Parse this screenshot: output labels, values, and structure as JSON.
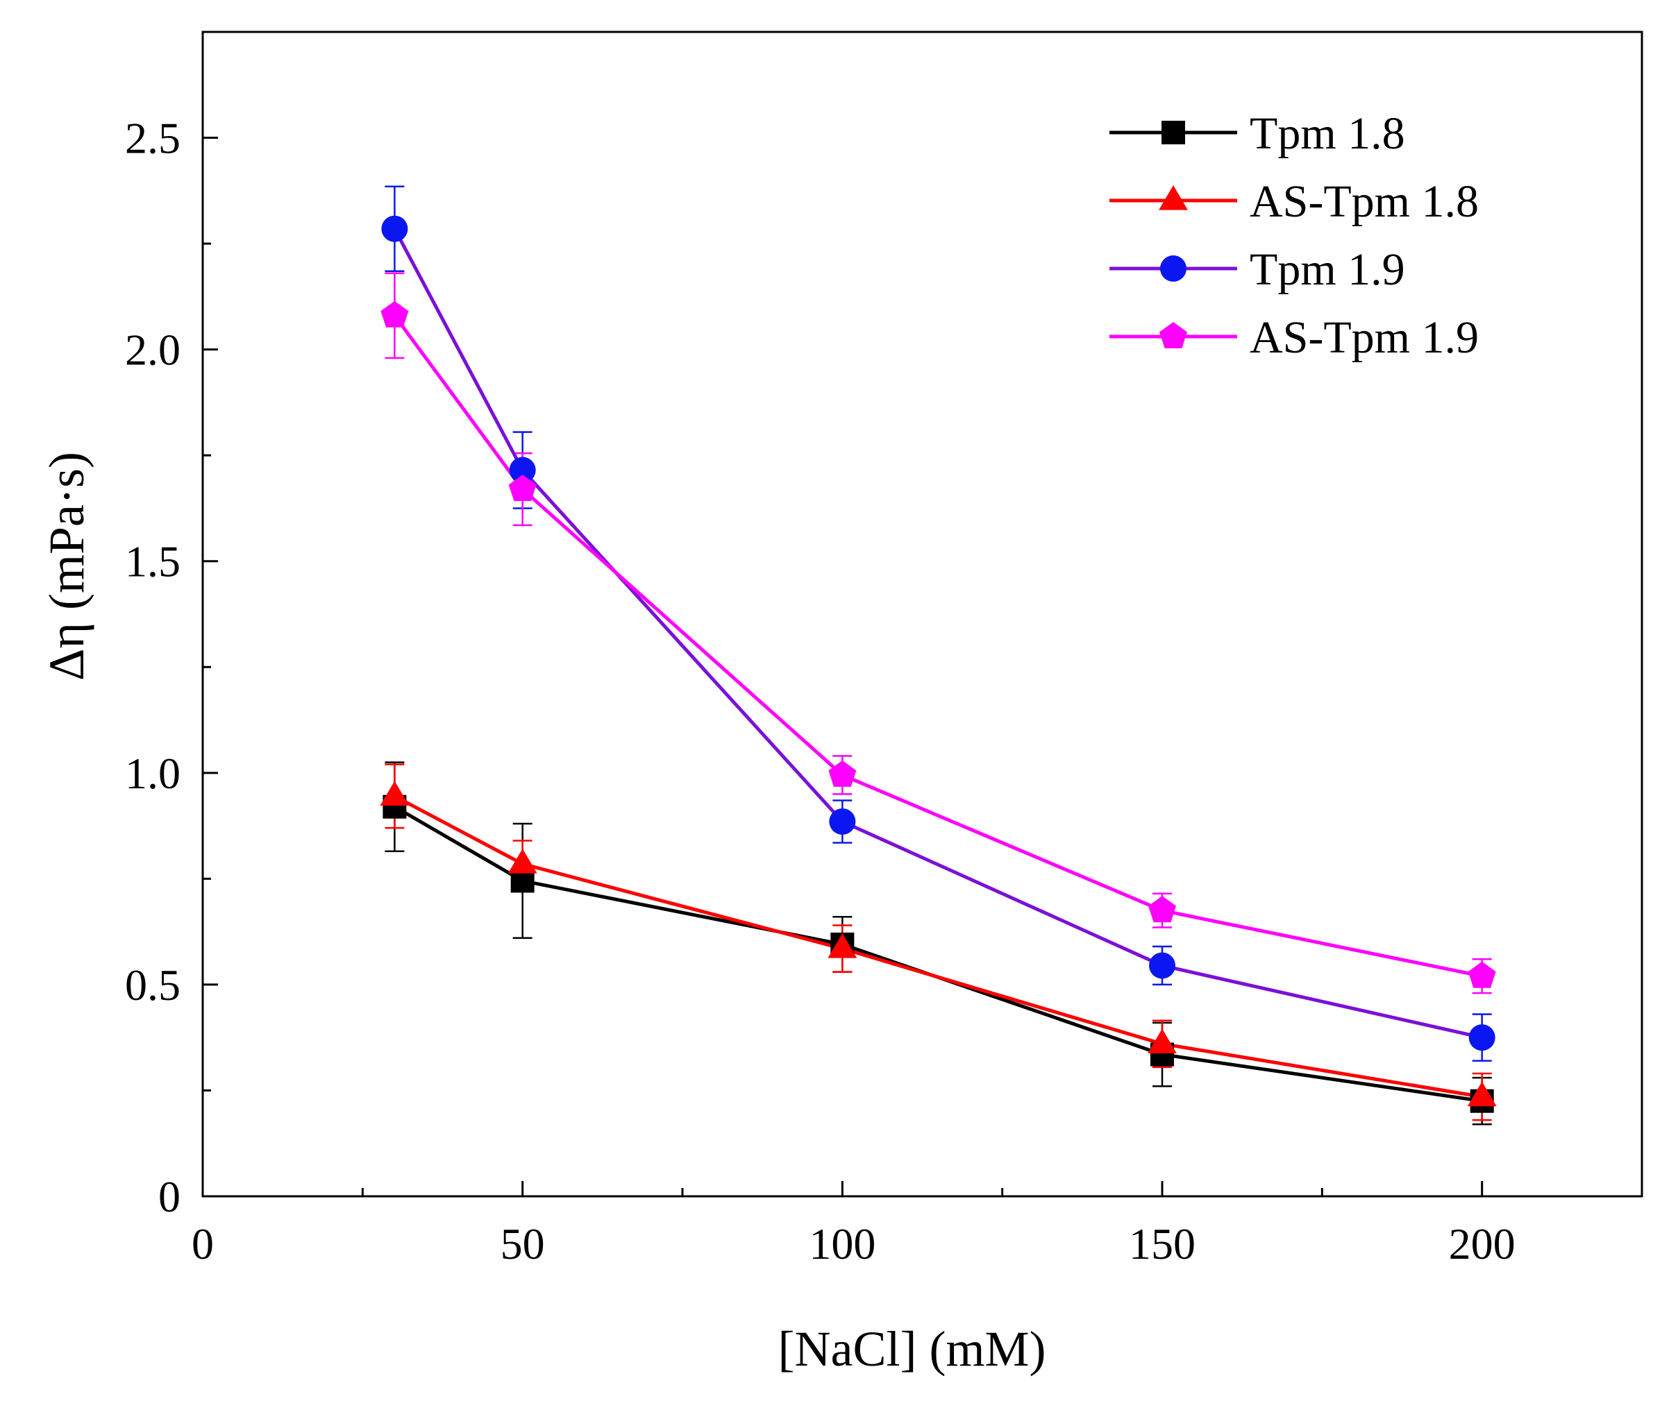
{
  "chart_data": {
    "type": "line",
    "title": "",
    "xlabel": "[NaCl] (mM)",
    "ylabel": "Δη (mPa·s)",
    "xlim": [
      0,
      225
    ],
    "ylim": [
      0,
      2.75
    ],
    "x_major_ticks": [
      0,
      50,
      100,
      150,
      200
    ],
    "x_minor_ticks": [
      25,
      75,
      125,
      175
    ],
    "y_major_ticks": [
      0,
      0.5,
      1.0,
      1.5,
      2.0,
      2.5
    ],
    "y_minor_ticks": [
      0.25,
      0.75,
      1.25,
      1.75,
      2.25
    ],
    "x_tick_labels": [
      "0",
      "50",
      "100",
      "150",
      "200"
    ],
    "y_tick_labels": [
      "0",
      "0.5",
      "1.0",
      "1.5",
      "2.0",
      "2.5"
    ],
    "grid": false,
    "legend_position": "top-right",
    "x": [
      30,
      50,
      100,
      150,
      200
    ],
    "series": [
      {
        "name": "Tpm 1.8",
        "color": "#000000",
        "marker": "square",
        "values": [
          0.92,
          0.745,
          0.595,
          0.335,
          0.225
        ],
        "errors": [
          0.105,
          0.135,
          0.065,
          0.075,
          0.055
        ]
      },
      {
        "name": "AS-Tpm 1.8",
        "color": "#ff0000",
        "marker": "triangle",
        "values": [
          0.945,
          0.785,
          0.585,
          0.36,
          0.235
        ],
        "errors": [
          0.075,
          0.055,
          0.055,
          0.055,
          0.055
        ]
      },
      {
        "name": "Tpm 1.9",
        "color": "#7b10d8",
        "markerColor": "#0a17f0",
        "marker": "circle",
        "values": [
          2.285,
          1.715,
          0.885,
          0.545,
          0.375
        ],
        "errors": [
          0.1,
          0.09,
          0.05,
          0.045,
          0.055
        ]
      },
      {
        "name": "AS-Tpm 1.9",
        "color": "#ff00ff",
        "marker": "pentagon",
        "values": [
          2.08,
          1.67,
          0.995,
          0.675,
          0.52
        ],
        "errors": [
          0.1,
          0.085,
          0.045,
          0.04,
          0.04
        ]
      }
    ]
  }
}
